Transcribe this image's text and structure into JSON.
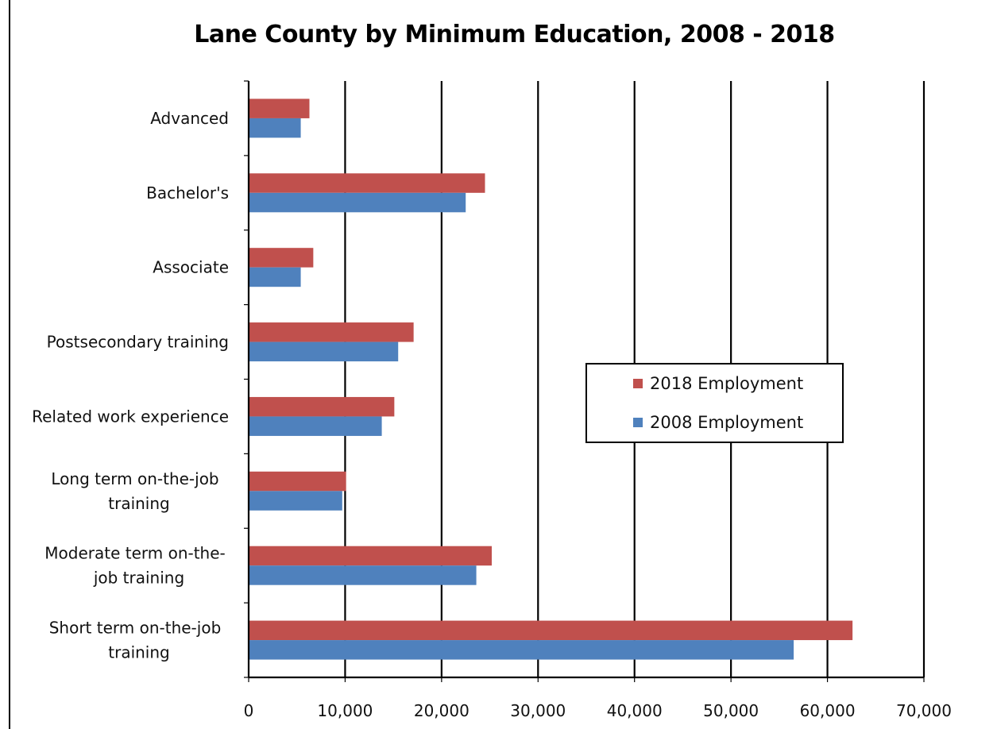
{
  "chart_data": {
    "type": "bar",
    "orientation": "horizontal",
    "title": "Lane County by Minimum Education, 2008 - 2018",
    "xlabel": "",
    "ylabel": "",
    "categories": [
      "Advanced",
      "Bachelor's",
      "Associate",
      "Postsecondary training",
      "Related work experience",
      "Long term on-the-job training",
      "Moderate term on-the-job training",
      "Short term on-the-job training"
    ],
    "category_lines": [
      [
        "Advanced"
      ],
      [
        "Bachelor's"
      ],
      [
        "Associate"
      ],
      [
        "Postsecondary training"
      ],
      [
        "Related work experience"
      ],
      [
        "Long term on-the-job",
        "training"
      ],
      [
        "Moderate term on-the-",
        "job training"
      ],
      [
        "Short term on-the-job",
        "training"
      ]
    ],
    "series": [
      {
        "name": "2018 Employment",
        "color": "#c0504d",
        "values": [
          6300,
          24500,
          6700,
          17100,
          15100,
          10100,
          25200,
          62600
        ]
      },
      {
        "name": "2008 Employment",
        "color": "#4f81bd",
        "values": [
          5400,
          22500,
          5400,
          15500,
          13800,
          9700,
          23600,
          56500
        ]
      }
    ],
    "xlim": [
      0,
      70000
    ],
    "xticks": [
      "0",
      "10,000",
      "20,000",
      "30,000",
      "40,000",
      "50,000",
      "60,000",
      "70,000"
    ],
    "grid": true,
    "legend_position": "center-right"
  }
}
